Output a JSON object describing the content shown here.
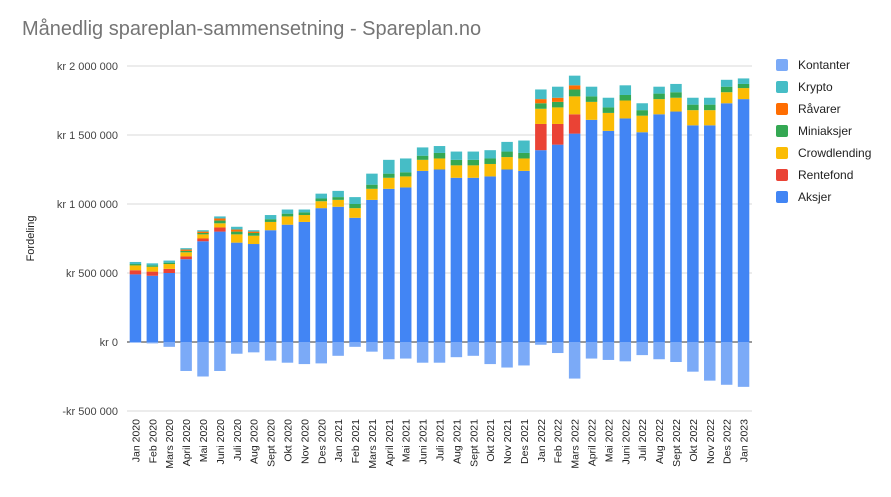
{
  "chart_data": {
    "type": "bar",
    "stacked": true,
    "title": "Månedlig spareplan-sammensetning - Spareplan.no",
    "xlabel": "",
    "ylabel": "Fordeling",
    "ylim": [
      -500000,
      2000000
    ],
    "yticks": [
      -500000,
      0,
      500000,
      1000000,
      1500000,
      2000000
    ],
    "ytick_labels": [
      "-kr 500 000",
      "kr  0",
      "kr  500 000",
      "kr 1 000 000",
      "kr 1 500 000",
      "kr 2 000 000"
    ],
    "grid": true,
    "legend_position": "right",
    "categories": [
      "Jan 2020",
      "Feb 2020",
      "Mars 2020",
      "April 2020",
      "Mai 2020",
      "Juni 2020",
      "Juli 2020",
      "Aug 2020",
      "Sept 2020",
      "Okt 2020",
      "Nov 2020",
      "Des 2020",
      "Jan 2021",
      "Feb 2021",
      "Mars 2021",
      "April 2021",
      "Mai 2021",
      "Juni 2021",
      "Juli 2021",
      "Aug 2021",
      "Sept 2021",
      "Okt 2021",
      "Nov 2021",
      "Des 2021",
      "Jan 2022",
      "Feb 2022",
      "Mars 2022",
      "April 2022",
      "Mai 2022",
      "Juni 2022",
      "Juli 2022",
      "Aug 2022",
      "Sept 2022",
      "Okt 2022",
      "Nov 2022",
      "Des 2022",
      "Jan 2023"
    ],
    "series": [
      {
        "name": "Aksjer",
        "color": "#4285f4",
        "values": [
          490000,
          480000,
          500000,
          600000,
          730000,
          800000,
          720000,
          710000,
          810000,
          850000,
          870000,
          970000,
          980000,
          900000,
          1030000,
          1110000,
          1120000,
          1240000,
          1250000,
          1190000,
          1190000,
          1200000,
          1250000,
          1240000,
          1390000,
          1430000,
          1510000,
          1610000,
          1530000,
          1620000,
          1520000,
          1650000,
          1670000,
          1570000,
          1570000,
          1730000,
          1760000
        ]
      },
      {
        "name": "Rentefond",
        "color": "#ea4335",
        "values": [
          30000,
          30000,
          30000,
          20000,
          20000,
          30000,
          0,
          0,
          0,
          0,
          0,
          0,
          0,
          0,
          0,
          0,
          0,
          0,
          0,
          0,
          0,
          0,
          0,
          0,
          190000,
          150000,
          140000,
          0,
          0,
          0,
          0,
          0,
          0,
          0,
          0,
          0,
          0
        ]
      },
      {
        "name": "Crowdlending",
        "color": "#fbbc04",
        "values": [
          35000,
          35000,
          35000,
          30000,
          30000,
          30000,
          60000,
          60000,
          60000,
          60000,
          50000,
          50000,
          50000,
          70000,
          80000,
          80000,
          80000,
          80000,
          80000,
          90000,
          90000,
          90000,
          90000,
          90000,
          110000,
          120000,
          130000,
          130000,
          130000,
          130000,
          120000,
          110000,
          100000,
          110000,
          110000,
          80000,
          80000
        ]
      },
      {
        "name": "Miniaksjer",
        "color": "#34a853",
        "values": [
          10000,
          10000,
          10000,
          10000,
          10000,
          20000,
          20000,
          20000,
          20000,
          20000,
          20000,
          20000,
          20000,
          30000,
          30000,
          30000,
          30000,
          30000,
          40000,
          40000,
          40000,
          40000,
          40000,
          40000,
          40000,
          40000,
          50000,
          40000,
          40000,
          40000,
          40000,
          40000,
          40000,
          40000,
          40000,
          40000,
          30000
        ]
      },
      {
        "name": "Råvarer",
        "color": "#ff6d01",
        "values": [
          0,
          0,
          0,
          10000,
          10000,
          15000,
          15000,
          10000,
          0,
          0,
          0,
          0,
          0,
          0,
          0,
          0,
          0,
          0,
          0,
          0,
          0,
          0,
          0,
          0,
          30000,
          30000,
          30000,
          0,
          0,
          0,
          0,
          0,
          0,
          0,
          0,
          0,
          0
        ]
      },
      {
        "name": "Krypto",
        "color": "#46bdc6",
        "values": [
          15000,
          15000,
          15000,
          10000,
          10000,
          15000,
          20000,
          10000,
          30000,
          30000,
          20000,
          35000,
          45000,
          50000,
          80000,
          100000,
          100000,
          60000,
          50000,
          60000,
          60000,
          60000,
          70000,
          90000,
          70000,
          80000,
          70000,
          70000,
          70000,
          70000,
          50000,
          50000,
          60000,
          50000,
          50000,
          50000,
          40000
        ]
      },
      {
        "name": "Kontanter",
        "color": "#7baaf7",
        "values": [
          -5000,
          -10000,
          -35000,
          -210000,
          -250000,
          -210000,
          -85000,
          -75000,
          -135000,
          -150000,
          -160000,
          -155000,
          -100000,
          -35000,
          -70000,
          -125000,
          -120000,
          -150000,
          -150000,
          -110000,
          -100000,
          -160000,
          -185000,
          -170000,
          -20000,
          -80000,
          -265000,
          -120000,
          -130000,
          -140000,
          -95000,
          -125000,
          -145000,
          -215000,
          -280000,
          -310000,
          -325000
        ]
      }
    ]
  }
}
